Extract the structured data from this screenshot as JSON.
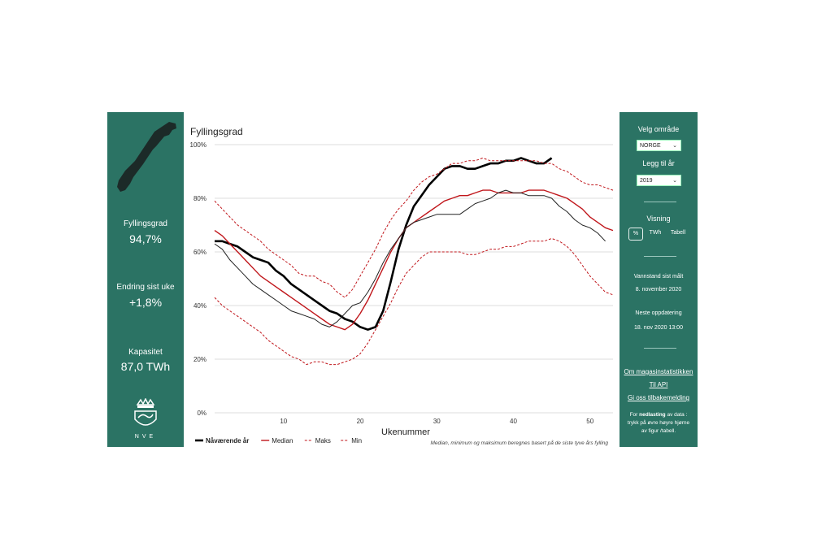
{
  "left_panel": {
    "kpis": [
      {
        "label": "Fyllingsgrad",
        "value": "94,7%"
      },
      {
        "label": "Endring sist uke",
        "value": "+1,8%"
      },
      {
        "label": "Kapasitet",
        "value": "87,0 TWh"
      }
    ],
    "logo_text": "NVE"
  },
  "right_panel": {
    "area_label": "Velg område",
    "area_value": "NORGE",
    "add_year_label": "Legg til år",
    "add_year_value": "2019",
    "view_label": "Visning",
    "view_options": [
      "%",
      "TWh",
      "Tabell"
    ],
    "view_selected": "%",
    "measured_label": "Vannstand sist målt",
    "measured_value": "8. november 2020",
    "next_update_label": "Neste oppdatering",
    "next_update_value": "18. nov 2020 13:00",
    "links": [
      "Om magasinstatistikken",
      "Til API",
      "Gi oss tilbakemelding"
    ],
    "download_note_prefix": "For ",
    "download_note_bold": "nedlasting",
    "download_note_suffix": " av data : trykk på øvre høyre hjørne av figur /tabell."
  },
  "colors": {
    "panel": "#2b7364",
    "current": "#000000",
    "median": "#c0161b",
    "grid": "#dddddd"
  },
  "chart_data": {
    "type": "line",
    "title": "Fyllingsgrad",
    "xlabel": "Ukenummer",
    "ylabel": "",
    "xlim": [
      1,
      53
    ],
    "ylim": [
      0,
      100
    ],
    "xticks": [
      10,
      20,
      30,
      40,
      50
    ],
    "yticks": [
      0,
      20,
      40,
      60,
      80,
      100
    ],
    "ytick_labels": [
      "0%",
      "20%",
      "40%",
      "60%",
      "80%",
      "100%"
    ],
    "footnote": "Median, minimum og maksimum beregnes basert på de siste tyve års fylling",
    "series": [
      {
        "name": "Nåværende år",
        "style": "thick-black",
        "x": [
          1,
          2,
          3,
          4,
          5,
          6,
          7,
          8,
          9,
          10,
          11,
          12,
          13,
          14,
          15,
          16,
          17,
          18,
          19,
          20,
          21,
          22,
          23,
          24,
          25,
          26,
          27,
          28,
          29,
          30,
          31,
          32,
          33,
          34,
          35,
          36,
          37,
          38,
          39,
          40,
          41,
          42,
          43,
          44,
          45
        ],
        "y": [
          64,
          64,
          63,
          62,
          60,
          58,
          57,
          56,
          53,
          51,
          48,
          46,
          44,
          42,
          40,
          38,
          37,
          35,
          34,
          32,
          31,
          32,
          38,
          49,
          61,
          70,
          77,
          81,
          85,
          88,
          91,
          92,
          92,
          91,
          91,
          92,
          93,
          93,
          94,
          94,
          95,
          94,
          93,
          93,
          95
        ]
      },
      {
        "name": "Median",
        "style": "solid-red",
        "x": [
          1,
          2,
          3,
          4,
          5,
          6,
          7,
          8,
          9,
          10,
          11,
          12,
          13,
          14,
          15,
          16,
          17,
          18,
          19,
          20,
          21,
          22,
          23,
          24,
          25,
          26,
          27,
          28,
          29,
          30,
          31,
          32,
          33,
          34,
          35,
          36,
          37,
          38,
          39,
          40,
          41,
          42,
          43,
          44,
          45,
          46,
          47,
          48,
          49,
          50,
          51,
          52,
          53
        ],
        "y": [
          68,
          66,
          63,
          60,
          57,
          54,
          51,
          49,
          47,
          45,
          43,
          41,
          39,
          37,
          35,
          33,
          32,
          31,
          33,
          37,
          42,
          48,
          54,
          60,
          65,
          69,
          71,
          73,
          75,
          77,
          79,
          80,
          81,
          81,
          82,
          83,
          83,
          82,
          82,
          82,
          82,
          83,
          83,
          83,
          82,
          81,
          80,
          78,
          76,
          73,
          71,
          69,
          68
        ]
      },
      {
        "name": "Maks",
        "style": "dashed-red",
        "x": [
          1,
          2,
          3,
          4,
          5,
          6,
          7,
          8,
          9,
          10,
          11,
          12,
          13,
          14,
          15,
          16,
          17,
          18,
          19,
          20,
          21,
          22,
          23,
          24,
          25,
          26,
          27,
          28,
          29,
          30,
          31,
          32,
          33,
          34,
          35,
          36,
          37,
          38,
          39,
          40,
          41,
          42,
          43,
          44,
          45,
          46,
          47,
          48,
          49,
          50,
          51,
          52,
          53
        ],
        "y": [
          79,
          76,
          73,
          70,
          68,
          66,
          64,
          61,
          59,
          57,
          55,
          52,
          51,
          51,
          49,
          48,
          45,
          43,
          46,
          51,
          56,
          61,
          67,
          72,
          76,
          79,
          83,
          86,
          88,
          89,
          91,
          93,
          93,
          94,
          94,
          95,
          94,
          94,
          94,
          94,
          94,
          94,
          94,
          93,
          93,
          91,
          90,
          88,
          86,
          85,
          85,
          84,
          83
        ]
      },
      {
        "name": "Min",
        "style": "dashed-red",
        "x": [
          1,
          2,
          3,
          4,
          5,
          6,
          7,
          8,
          9,
          10,
          11,
          12,
          13,
          14,
          15,
          16,
          17,
          18,
          19,
          20,
          21,
          22,
          23,
          24,
          25,
          26,
          27,
          28,
          29,
          30,
          31,
          32,
          33,
          34,
          35,
          36,
          37,
          38,
          39,
          40,
          41,
          42,
          43,
          44,
          45,
          46,
          47,
          48,
          49,
          50,
          51,
          52,
          53
        ],
        "y": [
          43,
          40,
          38,
          36,
          34,
          32,
          30,
          27,
          25,
          23,
          21,
          20,
          18,
          19,
          19,
          18,
          18,
          19,
          20,
          22,
          26,
          31,
          36,
          41,
          47,
          52,
          55,
          58,
          60,
          60,
          60,
          60,
          60,
          59,
          59,
          60,
          61,
          61,
          62,
          62,
          63,
          64,
          64,
          64,
          65,
          64,
          62,
          59,
          55,
          51,
          48,
          45,
          44
        ]
      },
      {
        "name": "2019",
        "style": "thin-black",
        "x": [
          1,
          2,
          3,
          4,
          5,
          6,
          7,
          8,
          9,
          10,
          11,
          12,
          13,
          14,
          15,
          16,
          17,
          18,
          19,
          20,
          21,
          22,
          23,
          24,
          25,
          26,
          27,
          28,
          29,
          30,
          31,
          32,
          33,
          34,
          35,
          36,
          37,
          38,
          39,
          40,
          41,
          42,
          43,
          44,
          45,
          46,
          47,
          48,
          49,
          50,
          51,
          52
        ],
        "y": [
          63,
          61,
          57,
          54,
          51,
          48,
          46,
          44,
          42,
          40,
          38,
          37,
          36,
          35,
          33,
          32,
          34,
          37,
          40,
          41,
          45,
          50,
          56,
          61,
          65,
          69,
          71,
          72,
          73,
          74,
          74,
          74,
          74,
          76,
          78,
          79,
          80,
          82,
          83,
          82,
          82,
          81,
          81,
          81,
          80,
          77,
          75,
          72,
          70,
          69,
          67,
          64
        ]
      }
    ],
    "legend": [
      {
        "label": "Nåværende år",
        "style": "thick-black"
      },
      {
        "label": "Median",
        "style": "solid-red"
      },
      {
        "label": "Maks",
        "style": "dashed-red"
      },
      {
        "label": "Min",
        "style": "dashed-red"
      }
    ],
    "legend_position": "bottom-left"
  }
}
